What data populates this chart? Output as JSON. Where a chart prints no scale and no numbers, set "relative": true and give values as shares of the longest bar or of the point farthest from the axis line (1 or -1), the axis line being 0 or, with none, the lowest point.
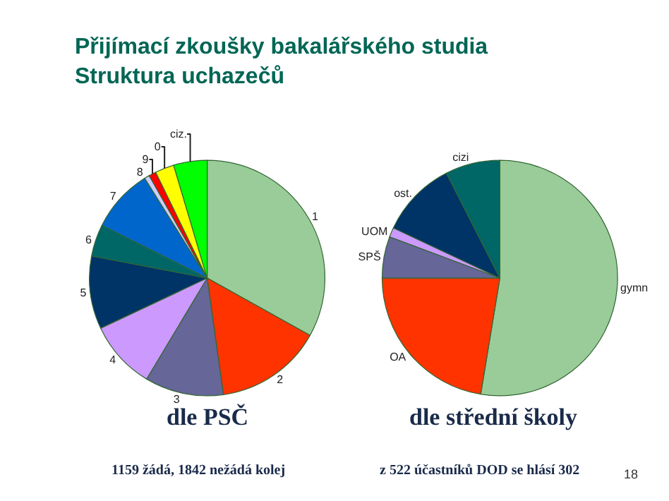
{
  "chart_data": [
    {
      "type": "pie",
      "relative": true,
      "title": "dle PSČ",
      "legend": false,
      "categories": [
        "1",
        "2",
        "3",
        "4",
        "5",
        "6",
        "7",
        "8",
        "9",
        "0",
        "ciz."
      ],
      "values": [
        33.1,
        14.7,
        10.8,
        9.4,
        10.0,
        4.4,
        8.7,
        0.7,
        1.0,
        2.6,
        4.6
      ],
      "colors": [
        "#99cc99",
        "#ff3300",
        "#666699",
        "#cc99ff",
        "#003366",
        "#006666",
        "#0066cc",
        "#ccccff",
        "#ff0000",
        "#ffff00",
        "#00ff00"
      ],
      "annotations": [
        "Přijímací zkoušky bakalářského studia\nStruktura uchazečů",
        "1159 žádá, 1842 nežádá kolej"
      ]
    },
    {
      "type": "pie",
      "relative": true,
      "title": "dle střední školy",
      "legend": false,
      "categories": [
        "gymn",
        "OA",
        "SPŠ",
        "UOM",
        "ost.",
        "cizi"
      ],
      "values": [
        52.6,
        22.4,
        5.7,
        1.3,
        10.5,
        7.5
      ],
      "colors": [
        "#99cc99",
        "#ff3300",
        "#666699",
        "#cc99ff",
        "#003366",
        "#006666"
      ],
      "annotations": [
        "z 522 účastníků DOD se hlásí 302",
        "18"
      ]
    }
  ]
}
